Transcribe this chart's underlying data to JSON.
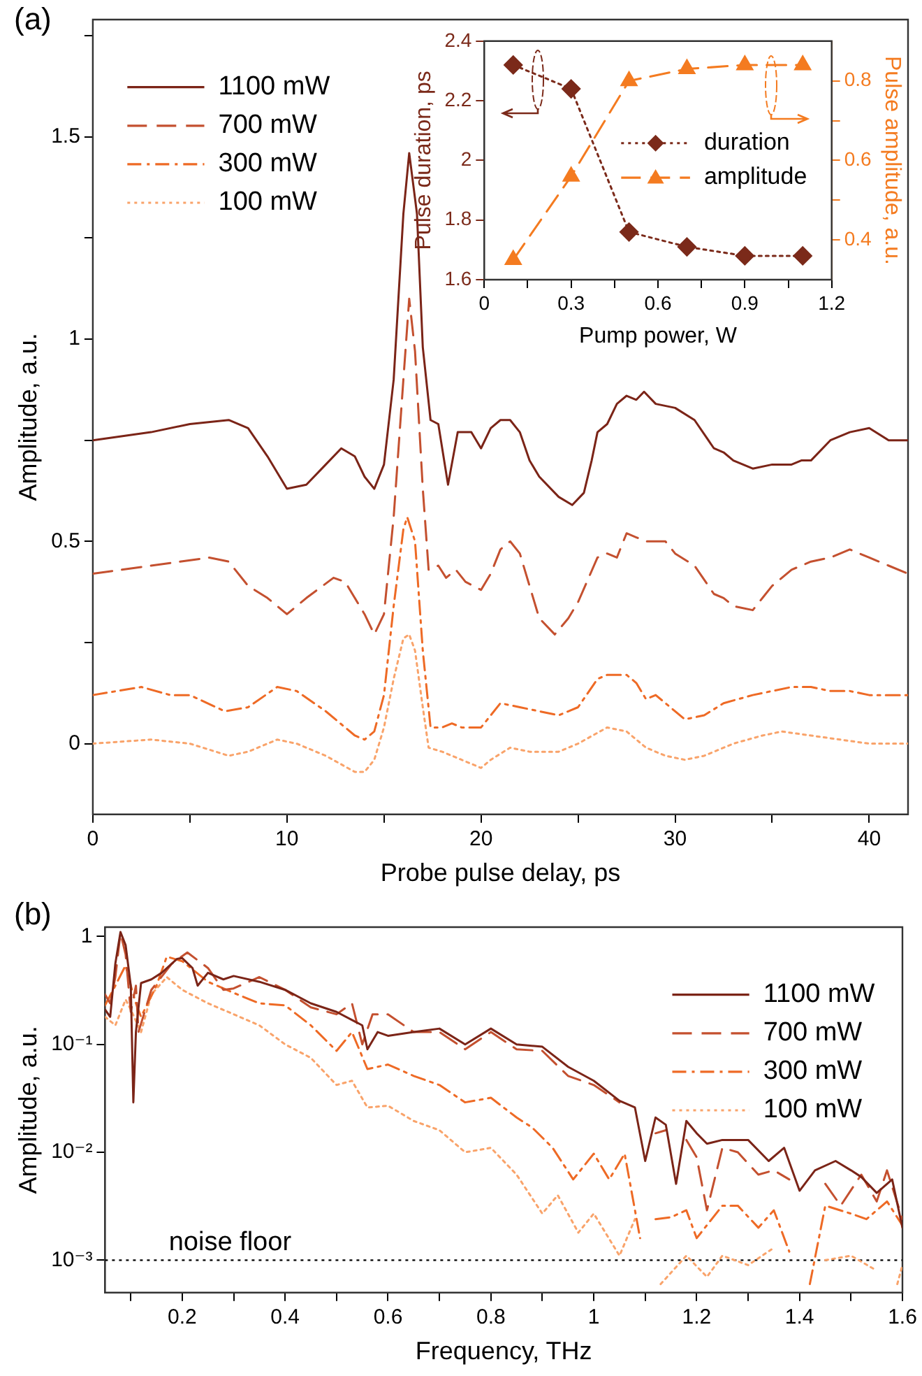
{
  "chart_data": [
    {
      "type": "line",
      "annotations": [
        "(a)"
      ],
      "xlabel": "Probe pulse delay, ps",
      "ylabel": "Amplitude, a.u.",
      "xlim": [
        0,
        42
      ],
      "xticks": [
        0,
        {
          "value": 5,
          "label": null
        },
        10,
        {
          "value": 15,
          "label": null
        },
        20,
        {
          "value": 25,
          "label": null
        },
        30,
        {
          "value": 35,
          "label": null
        },
        40
      ],
      "ylim": [
        -0.175,
        1.79
      ],
      "yticks": [
        0,
        {
          "value": 0.25,
          "label": null
        },
        0.5,
        {
          "value": 0.75,
          "label": null
        },
        1,
        {
          "value": 1.25,
          "label": null
        },
        1.5,
        {
          "value": 1.75,
          "label": null
        }
      ],
      "legend": "top left",
      "series": [
        {
          "name": "1100 mW",
          "color": "#7b2417",
          "line_style": "solid",
          "x": [
            0,
            3,
            5,
            7,
            8,
            9,
            10,
            11,
            12,
            12.8,
            13.5,
            14,
            14.5,
            15,
            15.5,
            16,
            16.3,
            16.7,
            17,
            17.4,
            17.8,
            18.3,
            18.8,
            19.5,
            20,
            20.5,
            21,
            21.5,
            22,
            22.5,
            23,
            24,
            24.7,
            25.3,
            25.7,
            26,
            26.5,
            27,
            27.5,
            28,
            28.4,
            29,
            30,
            31,
            32,
            32.5,
            33,
            34,
            35,
            36,
            36.5,
            37,
            38,
            39,
            40,
            41,
            42
          ],
          "values": [
            0.75,
            0.77,
            0.79,
            0.8,
            0.78,
            0.71,
            0.63,
            0.64,
            0.69,
            0.73,
            0.71,
            0.66,
            0.63,
            0.69,
            0.9,
            1.31,
            1.46,
            1.31,
            0.98,
            0.8,
            0.79,
            0.64,
            0.77,
            0.77,
            0.73,
            0.78,
            0.8,
            0.8,
            0.77,
            0.7,
            0.66,
            0.61,
            0.59,
            0.62,
            0.7,
            0.77,
            0.79,
            0.84,
            0.86,
            0.85,
            0.87,
            0.84,
            0.83,
            0.8,
            0.73,
            0.72,
            0.7,
            0.68,
            0.69,
            0.69,
            0.7,
            0.7,
            0.75,
            0.77,
            0.78,
            0.75,
            0.75
          ]
        },
        {
          "name": "700 mW",
          "color": "#c4502f",
          "line_style": "dashed",
          "x": [
            0,
            3,
            6,
            7,
            8,
            9,
            10,
            11,
            12.4,
            13,
            14,
            14.5,
            15,
            15.5,
            16,
            16.3,
            16.6,
            17,
            17.3,
            17.8,
            18.2,
            18.7,
            19.2,
            20,
            20.5,
            21,
            21.5,
            22,
            22.5,
            23,
            23.8,
            24.5,
            25,
            26,
            26.5,
            27,
            27.5,
            28,
            28.5,
            29.5,
            30,
            31,
            32,
            32.5,
            33,
            34,
            34.5,
            35,
            36,
            37,
            38,
            39,
            40,
            41,
            42
          ],
          "values": [
            0.42,
            0.44,
            0.46,
            0.45,
            0.39,
            0.36,
            0.32,
            0.36,
            0.41,
            0.4,
            0.32,
            0.27,
            0.32,
            0.56,
            0.9,
            1.1,
            0.97,
            0.63,
            0.43,
            0.44,
            0.41,
            0.43,
            0.4,
            0.38,
            0.42,
            0.48,
            0.5,
            0.47,
            0.39,
            0.31,
            0.27,
            0.31,
            0.35,
            0.46,
            0.47,
            0.46,
            0.52,
            0.51,
            0.5,
            0.5,
            0.47,
            0.44,
            0.37,
            0.36,
            0.34,
            0.33,
            0.36,
            0.39,
            0.43,
            0.45,
            0.46,
            0.48,
            0.46,
            0.44,
            0.42
          ]
        },
        {
          "name": "300 mW",
          "color": "#ee6a25",
          "line_style": "dashdot",
          "x": [
            0,
            2.5,
            4,
            5,
            6.8,
            8,
            9.5,
            10.5,
            12,
            13.5,
            14,
            14.5,
            15,
            15.5,
            16,
            16.2,
            16.6,
            17,
            17.4,
            18,
            18.5,
            19,
            20,
            20.5,
            21,
            22,
            23,
            24,
            25,
            26,
            26.5,
            27.5,
            28,
            28.5,
            29,
            29.5,
            30.5,
            31.5,
            32.5,
            34,
            35,
            36,
            37,
            38,
            39,
            40,
            42
          ],
          "values": [
            0.12,
            0.14,
            0.12,
            0.12,
            0.08,
            0.09,
            0.14,
            0.13,
            0.08,
            0.02,
            0.01,
            0.03,
            0.12,
            0.34,
            0.53,
            0.56,
            0.5,
            0.23,
            0.04,
            0.04,
            0.05,
            0.04,
            0.04,
            0.07,
            0.1,
            0.09,
            0.08,
            0.07,
            0.09,
            0.16,
            0.17,
            0.17,
            0.15,
            0.11,
            0.12,
            0.1,
            0.06,
            0.07,
            0.1,
            0.12,
            0.13,
            0.14,
            0.14,
            0.13,
            0.13,
            0.12,
            0.12
          ]
        },
        {
          "name": "100 mW",
          "color": "#f9a36a",
          "line_style": "dotted",
          "x": [
            0,
            3,
            5,
            7,
            8,
            9.5,
            10.5,
            12,
            13.5,
            14,
            14.5,
            15,
            15.5,
            16,
            16.3,
            16.6,
            17,
            17.3,
            18,
            19,
            20,
            20.5,
            21.5,
            22.5,
            24,
            25,
            26.5,
            27.5,
            28.5,
            29.5,
            30.5,
            31.5,
            33,
            34.5,
            35.5,
            37,
            38.5,
            40,
            42
          ],
          "values": [
            0,
            0.01,
            0,
            -0.03,
            -0.02,
            0.01,
            0,
            -0.03,
            -0.07,
            -0.07,
            -0.04,
            0.04,
            0.16,
            0.26,
            0.27,
            0.23,
            0.09,
            -0.01,
            -0.02,
            -0.04,
            -0.06,
            -0.04,
            -0.01,
            -0.02,
            -0.02,
            0,
            0.04,
            0.03,
            -0.01,
            -0.03,
            -0.04,
            -0.03,
            0,
            0.02,
            0.03,
            0.02,
            0.01,
            0,
            0
          ]
        }
      ]
    },
    {
      "type": "line",
      "xlabel": "Pump power, W",
      "ylabel": "Pulse duration, ps",
      "y2label": "Pulse amplitude, a.u.",
      "xlim": [
        0,
        1.2
      ],
      "xticks": [
        0,
        {
          "value": 0.15,
          "label": null
        },
        0.3,
        {
          "value": 0.45,
          "label": null
        },
        0.6,
        {
          "value": 0.75,
          "label": null
        },
        0.9,
        {
          "value": 1.05,
          "label": null
        },
        1.2
      ],
      "ylim": [
        1.6,
        2.4
      ],
      "yticks": [
        1.6,
        1.8,
        2,
        2.2,
        2.4
      ],
      "y2lim": [
        0.3,
        0.9
      ],
      "y2ticks": [
        0.4,
        {
          "value": 0.5,
          "label": null
        },
        0.6,
        {
          "value": 0.7,
          "label": null
        },
        0.8
      ],
      "legend": "right",
      "series": [
        {
          "name": "duration",
          "color": "#7b2a1a",
          "line_style": "dotted",
          "marker": "diamond",
          "x": [
            0.1,
            0.3,
            0.5,
            0.7,
            0.9,
            1.1
          ],
          "values": [
            2.32,
            2.24,
            1.76,
            1.71,
            1.68,
            1.68
          ]
        },
        {
          "name": "amplitude",
          "color": "#f47b20",
          "line_style": "dashed",
          "marker": "triangle",
          "axis": "y2",
          "x": [
            0.1,
            0.3,
            0.5,
            0.7,
            0.9,
            1.1
          ],
          "values": [
            0.35,
            0.56,
            0.8,
            0.83,
            0.84,
            0.84
          ]
        }
      ]
    },
    {
      "type": "line",
      "annotations": [
        "(b)"
      ],
      "xlabel": "Frequency, THz",
      "ylabel": "Amplitude, a.u.",
      "log": "y",
      "xlim": [
        0.05,
        1.6
      ],
      "xticks": [
        {
          "value": 0.1,
          "label": null
        },
        0.2,
        {
          "value": 0.3,
          "label": null
        },
        0.4,
        {
          "value": 0.5,
          "label": null
        },
        0.6,
        {
          "value": 0.7,
          "label": null
        },
        0.8,
        {
          "value": 0.9,
          "label": null
        },
        1,
        {
          "value": 1.1,
          "label": null
        },
        1.2,
        {
          "value": 1.3,
          "label": null
        },
        1.4,
        {
          "value": 1.5,
          "label": null
        },
        1.6
      ],
      "ylim": [
        0.0005,
        1.22
      ],
      "yticks": [
        {
          "value": 0.001,
          "label": "10⁻³"
        },
        {
          "value": 0.01,
          "label": "10⁻²"
        },
        {
          "value": 0.1,
          "label": "10⁻¹"
        },
        1
      ],
      "legend": "top right",
      "ref_lines": [
        {
          "axis": "y",
          "value": 0.001,
          "label": "noise floor",
          "color": "#000000",
          "line_style": "dotted"
        }
      ],
      "series": [
        {
          "name": "1100 mW",
          "color": "#7b2417",
          "line_style": "solid",
          "x": [
            0.05,
            0.06,
            0.07,
            0.08,
            0.09,
            0.1,
            0.105,
            0.11,
            0.12,
            0.14,
            0.16,
            0.19,
            0.2,
            0.22,
            0.23,
            0.25,
            0.28,
            0.3,
            0.35,
            0.4,
            0.45,
            0.5,
            0.55,
            0.56,
            0.58,
            0.6,
            0.65,
            0.7,
            0.75,
            0.8,
            0.85,
            0.9,
            0.95,
            1,
            1.05,
            1.08,
            1.1,
            1.12,
            1.14,
            1.16,
            1.18,
            1.2,
            1.22,
            1.25,
            1.3,
            1.34,
            1.37,
            1.4,
            1.43,
            1.47,
            1.5,
            1.52,
            1.55,
            1.58,
            1.6
          ],
          "values": [
            0.21,
            0.18,
            0.56,
            1.1,
            0.83,
            0.35,
            0.029,
            0.13,
            0.37,
            0.4,
            0.46,
            0.62,
            0.63,
            0.51,
            0.35,
            0.46,
            0.4,
            0.43,
            0.38,
            0.32,
            0.24,
            0.2,
            0.15,
            0.09,
            0.13,
            0.12,
            0.13,
            0.14,
            0.1,
            0.14,
            0.1,
            0.095,
            0.062,
            0.046,
            0.03,
            0.026,
            0.0083,
            0.021,
            0.018,
            0.0051,
            0.0195,
            0.015,
            0.012,
            0.013,
            0.013,
            0.0083,
            0.011,
            0.0044,
            0.0068,
            0.0083,
            0.0068,
            0.0059,
            0.0042,
            0.0056,
            0.002
          ]
        },
        {
          "name": "700 mW",
          "color": "#c4502f",
          "line_style": "dashed",
          "x": [
            0.05,
            0.06,
            0.07,
            0.08,
            0.09,
            0.1,
            0.11,
            0.115,
            0.14,
            0.18,
            0.21,
            0.25,
            0.28,
            0.3,
            0.35,
            0.4,
            0.45,
            0.5,
            0.53,
            0.55,
            0.57,
            0.6,
            0.65,
            0.7,
            0.75,
            0.8,
            0.85,
            0.9,
            0.95,
            1,
            1.05,
            1.1,
            1.12,
            1.14,
            1.16,
            1.18,
            1.2,
            1.22,
            1.25,
            1.28,
            1.32,
            1.35,
            1.38,
            1.41,
            1.43,
            1.45,
            1.48,
            1.52,
            1.55,
            1.57,
            1.6
          ],
          "values": [
            0.29,
            0.24,
            0.42,
            1.08,
            0.68,
            0.2,
            0.35,
            0.13,
            0.32,
            0.56,
            0.71,
            0.51,
            0.32,
            0.33,
            0.42,
            0.32,
            0.22,
            0.19,
            0.24,
            0.1,
            0.19,
            0.19,
            0.13,
            0.13,
            0.09,
            0.13,
            0.09,
            0.087,
            0.051,
            0.042,
            0.029,
            null,
            0.015,
            0.016,
            null,
            0.013,
            0.009,
            0.0029,
            0.011,
            0.01,
            0.0062,
            0.0068,
            0.0056,
            null,
            null,
            0.0051,
            0.0032,
            0.0062,
            0.0035,
            0.0068,
            0.0024
          ]
        },
        {
          "name": "300 mW",
          "color": "#ee6a25",
          "line_style": "dashdot",
          "x": [
            0.05,
            0.07,
            0.09,
            0.1,
            0.11,
            0.12,
            0.15,
            0.17,
            0.2,
            0.25,
            0.3,
            0.35,
            0.4,
            0.45,
            0.5,
            0.53,
            0.56,
            0.6,
            0.65,
            0.7,
            0.75,
            0.8,
            0.85,
            0.88,
            0.92,
            0.96,
            1,
            1.03,
            1.06,
            1.09,
            1.1,
            1.12,
            1.15,
            1.18,
            1.2,
            1.25,
            1.28,
            1.32,
            1.35,
            1.38,
            1.4,
            1.42,
            1.45,
            1.5,
            1.53,
            1.57,
            1.6
          ],
          "values": [
            0.23,
            0.35,
            0.54,
            0.35,
            0.24,
            0.18,
            0.35,
            0.65,
            0.59,
            0.38,
            0.3,
            0.24,
            0.23,
            0.15,
            0.087,
            0.13,
            0.059,
            0.065,
            0.051,
            0.042,
            0.029,
            0.032,
            0.021,
            0.017,
            0.011,
            0.0056,
            0.0097,
            0.0056,
            0.0097,
            0.0016,
            null,
            0.0024,
            0.0025,
            0.0029,
            0.0016,
            0.0032,
            0.0032,
            0.002,
            0.0029,
            0.0012,
            null,
            0.0006,
            0.0032,
            0.0027,
            0.0024,
            0.0035,
            0.0021
          ]
        },
        {
          "name": "100 mW",
          "color": "#f9a36a",
          "line_style": "dotted",
          "x": [
            0.05,
            0.07,
            0.09,
            0.1,
            0.12,
            0.14,
            0.17,
            0.2,
            0.25,
            0.3,
            0.35,
            0.4,
            0.45,
            0.5,
            0.53,
            0.56,
            0.6,
            0.65,
            0.7,
            0.75,
            0.8,
            0.85,
            0.9,
            0.93,
            0.97,
            1,
            1.05,
            1.08,
            1.1,
            1.13,
            1.18,
            1.22,
            1.25,
            1.3,
            1.35,
            1.4,
            1.45,
            1.5,
            1.55,
            1.58,
            1.59,
            1.6
          ],
          "values": [
            0.18,
            0.15,
            0.26,
            0.21,
            0.13,
            0.29,
            0.42,
            0.32,
            0.24,
            0.19,
            0.15,
            0.1,
            0.075,
            0.042,
            0.046,
            0.026,
            0.027,
            0.0195,
            0.016,
            0.01,
            0.011,
            0.0062,
            0.0027,
            0.004,
            0.0018,
            0.0027,
            0.0011,
            0.0024,
            null,
            0.0006,
            0.0011,
            0.0007,
            0.0011,
            0.0009,
            0.0013,
            null,
            0.001,
            0.0011,
            0.0008,
            null,
            0.0006,
            0.0009
          ]
        }
      ]
    }
  ]
}
